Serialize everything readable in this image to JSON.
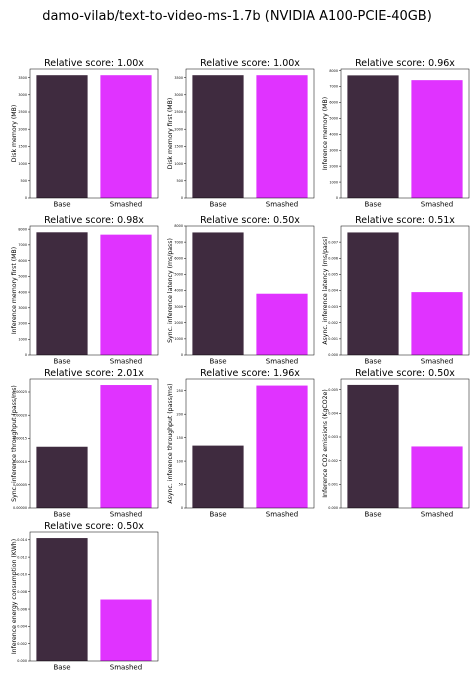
{
  "suptitle": "damo-vilab/text-to-video-ms-1.7b (NVIDIA A100-PCIE-40GB)",
  "colors": {
    "base": "#3f2b3f",
    "smashed": "#e033ff",
    "axis": "#000000"
  },
  "chart_data": [
    {
      "type": "bar",
      "title": "Relative score: 1.00x",
      "ylabel": "Disk memory (MB)",
      "categories": [
        "Base",
        "Smashed"
      ],
      "values": [
        3570,
        3570
      ],
      "ylim": [
        0,
        3750
      ],
      "yticks": [
        "0",
        "500",
        "1000",
        "1500",
        "2000",
        "2500",
        "3000",
        "3500"
      ],
      "ytick_values": [
        0,
        500,
        1000,
        1500,
        2000,
        2500,
        3000,
        3500
      ]
    },
    {
      "type": "bar",
      "title": "Relative score: 1.00x",
      "ylabel": "Disk memory first (MB)",
      "categories": [
        "Base",
        "Smashed"
      ],
      "values": [
        3570,
        3570
      ],
      "ylim": [
        0,
        3750
      ],
      "yticks": [
        "0",
        "500",
        "1000",
        "1500",
        "2000",
        "2500",
        "3000",
        "3500"
      ],
      "ytick_values": [
        0,
        500,
        1000,
        1500,
        2000,
        2500,
        3000,
        3500
      ]
    },
    {
      "type": "bar",
      "title": "Relative score: 0.96x",
      "ylabel": "Inference memory (MB)",
      "categories": [
        "Base",
        "Smashed"
      ],
      "values": [
        7700,
        7400
      ],
      "ylim": [
        0,
        8100
      ],
      "yticks": [
        "0",
        "1000",
        "2000",
        "3000",
        "4000",
        "5000",
        "6000",
        "7000",
        "8000"
      ],
      "ytick_values": [
        0,
        1000,
        2000,
        3000,
        4000,
        5000,
        6000,
        7000,
        8000
      ]
    },
    {
      "type": "bar",
      "title": "Relative score: 0.98x",
      "ylabel": "Inference memory first (MB)",
      "categories": [
        "Base",
        "Smashed"
      ],
      "values": [
        7800,
        7650
      ],
      "ylim": [
        0,
        8200
      ],
      "yticks": [
        "0",
        "1000",
        "2000",
        "3000",
        "4000",
        "5000",
        "6000",
        "7000",
        "8000"
      ],
      "ytick_values": [
        0,
        1000,
        2000,
        3000,
        4000,
        5000,
        6000,
        7000,
        8000
      ]
    },
    {
      "type": "bar",
      "title": "Relative score: 0.50x",
      "ylabel": "Sync. inference latency (ms/pass)",
      "categories": [
        "Base",
        "Smashed"
      ],
      "values": [
        7600,
        3800
      ],
      "ylim": [
        0,
        8000
      ],
      "yticks": [
        "0",
        "1000",
        "2000",
        "3000",
        "4000",
        "5000",
        "6000",
        "7000",
        "8000"
      ],
      "ytick_values": [
        0,
        1000,
        2000,
        3000,
        4000,
        5000,
        6000,
        7000,
        8000
      ]
    },
    {
      "type": "bar",
      "title": "Relative score: 0.51x",
      "ylabel": "Async. inference latency (ms/pass)",
      "categories": [
        "Base",
        "Smashed"
      ],
      "values": [
        0.0076,
        0.0039
      ],
      "ylim": [
        0,
        0.008
      ],
      "yticks": [
        "0.000",
        "0.001",
        "0.002",
        "0.003",
        "0.004",
        "0.005",
        "0.006",
        "0.007"
      ],
      "ytick_values": [
        0,
        0.001,
        0.002,
        0.003,
        0.004,
        0.005,
        0.006,
        0.007
      ]
    },
    {
      "type": "bar",
      "title": "Relative score: 2.01x",
      "ylabel": "Sync. inference throughput (pass/ms)",
      "categories": [
        "Base",
        "Smashed"
      ],
      "values": [
        0.000132,
        0.000265
      ],
      "ylim": [
        0,
        0.000278
      ],
      "yticks": [
        "0.00000",
        "0.00005",
        "0.00010",
        "0.00015",
        "0.00020",
        "0.00025"
      ],
      "ytick_values": [
        0,
        5e-05,
        0.0001,
        0.00015,
        0.0002,
        0.00025
      ]
    },
    {
      "type": "bar",
      "title": "Relative score: 1.96x",
      "ylabel": "Async. inference throughput (pass/ms)",
      "categories": [
        "Base",
        "Smashed"
      ],
      "values": [
        133,
        261
      ],
      "ylim": [
        0,
        275
      ],
      "yticks": [
        "0",
        "50",
        "100",
        "150",
        "200",
        "250"
      ],
      "ytick_values": [
        0,
        50,
        100,
        150,
        200,
        250
      ]
    },
    {
      "type": "bar",
      "title": "Relative score: 0.50x",
      "ylabel": "Inference CO2 emissions (KgCO2e)",
      "categories": [
        "Base",
        "Smashed"
      ],
      "values": [
        0.0052,
        0.0026
      ],
      "ylim": [
        0,
        0.00545
      ],
      "yticks": [
        "0.000",
        "0.001",
        "0.002",
        "0.003",
        "0.004",
        "0.005"
      ],
      "ytick_values": [
        0,
        0.001,
        0.002,
        0.003,
        0.004,
        0.005
      ]
    },
    {
      "type": "bar",
      "title": "Relative score: 0.50x",
      "ylabel": "Inference energy consumption (KWh)",
      "categories": [
        "Base",
        "Smashed"
      ],
      "values": [
        0.0142,
        0.0071
      ],
      "ylim": [
        0,
        0.0149
      ],
      "yticks": [
        "0.000",
        "0.002",
        "0.004",
        "0.006",
        "0.008",
        "0.010",
        "0.012",
        "0.014"
      ],
      "ytick_values": [
        0,
        0.002,
        0.004,
        0.006,
        0.008,
        0.01,
        0.012,
        0.014
      ]
    }
  ]
}
